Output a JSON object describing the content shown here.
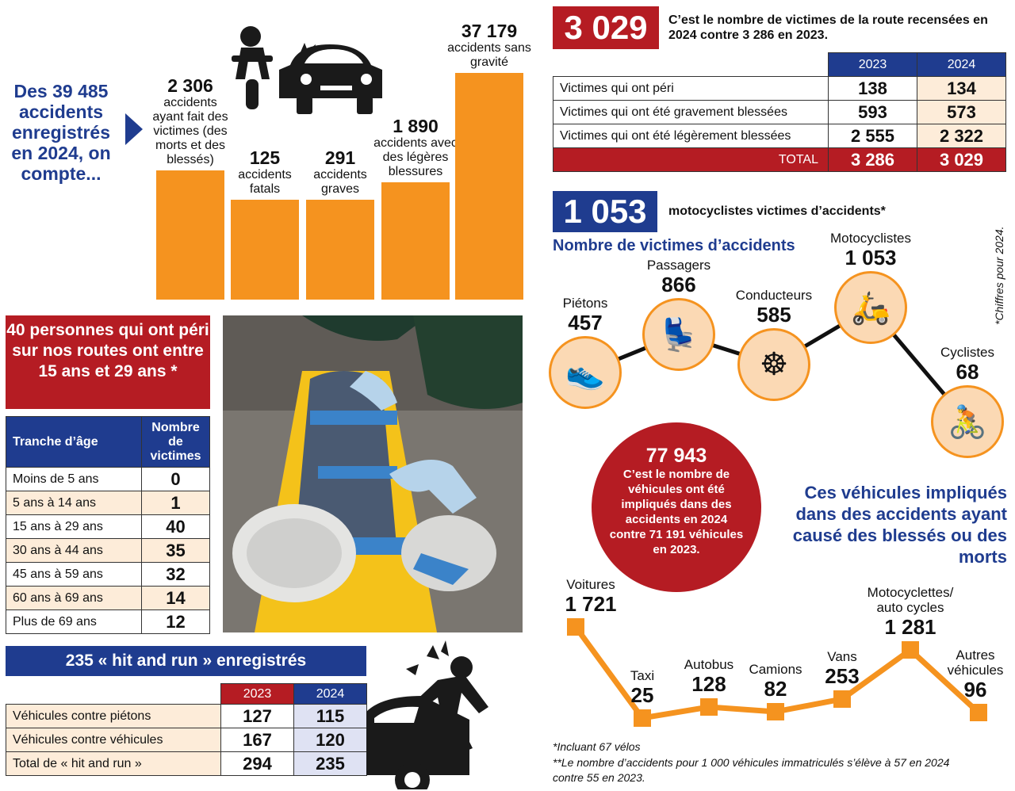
{
  "accidents": {
    "intro": "Des 39 485 accidents enregistrés en 2024, on compte...",
    "chart_data": {
      "type": "bar",
      "categories": [
        "accidents ayant fait des victimes (des morts et des blessés)",
        "accidents fatals",
        "accidents graves",
        "accidents avec des légères blessures",
        "accidents sans gravité"
      ],
      "values": [
        2306,
        125,
        291,
        1890,
        37179
      ]
    },
    "value_labels": [
      "2 306",
      "125",
      "291",
      "1 890",
      "37 179"
    ],
    "bar_texts": [
      "accidents ayant fait des victimes (des morts et des blessés)",
      "accidents fatals",
      "accidents graves",
      "accidents avec des légères blessures",
      "accidents sans gravité"
    ]
  },
  "victims": {
    "big_number": "3 029",
    "caption": "C’est le nombre de victimes de la route recensées en 2024 contre 3 286 en 2023.",
    "table": {
      "headers": [
        "2023",
        "2024"
      ],
      "rows": [
        {
          "label": "Victimes qui ont péri",
          "v2023": "138",
          "v2024": "134"
        },
        {
          "label": "Victimes qui ont été gravement blessées",
          "v2023": "593",
          "v2024": "573"
        },
        {
          "label": "Victimes qui ont été légèrement blessées",
          "v2023": "2 555",
          "v2024": "2 322"
        }
      ],
      "total_label": "TOTAL",
      "total_2023": "3 286",
      "total_2024": "3 029"
    }
  },
  "motorcyclists": {
    "big_number": "1 053",
    "caption": "motocyclistes victimes d’accidents*",
    "side_note": "*Chiffres pour 2024.",
    "chart_title": "Nombre de victimes d’accidents",
    "chart_data": {
      "type": "line",
      "categories": [
        "Piétons",
        "Passagers",
        "Conducteurs",
        "Motocyclistes",
        "Cyclistes"
      ],
      "values": [
        457,
        866,
        585,
        1053,
        68
      ]
    },
    "value_labels": [
      "457",
      "866",
      "585",
      "1 053",
      "68"
    ],
    "icons": [
      "shoe-icon",
      "car-seat-icon",
      "steering-wheel-icon",
      "scooter-icon",
      "bicycle-icon"
    ]
  },
  "youth": {
    "headline": "40 personnes qui ont péri sur nos routes ont entre 15 ans et 29 ans *",
    "table": {
      "header_age": "Tranche d’âge",
      "header_count": "Nombre de victimes",
      "rows": [
        {
          "age": "Moins de 5 ans",
          "count": "0"
        },
        {
          "age": "5 ans à 14 ans",
          "count": "1"
        },
        {
          "age": "15 ans à 29 ans",
          "count": "40"
        },
        {
          "age": "30 ans à 44 ans",
          "count": "35"
        },
        {
          "age": "45 ans à 59 ans",
          "count": "32"
        },
        {
          "age": "60 ans à 69 ans",
          "count": "14"
        },
        {
          "age": "Plus de 69 ans",
          "count": "12"
        }
      ]
    }
  },
  "vehicles": {
    "bubble_number": "77 943",
    "bubble_text": "C’est le nombre de véhicules ont été impliqués dans des accidents en 2024 contre 71 191 véhicules en 2023.",
    "headline": "Ces véhicules impliqués dans des accidents ayant causé des blessés ou des morts",
    "chart_data": {
      "type": "line",
      "categories": [
        "Voitures",
        "Taxi",
        "Autobus",
        "Camions",
        "Vans",
        "Motocyclettes/ auto cycles",
        "Autres véhicules"
      ],
      "values": [
        1721,
        25,
        128,
        82,
        253,
        1281,
        96
      ]
    },
    "value_labels": [
      "1 721",
      "25",
      "128",
      "82",
      "253",
      "1 281",
      "96"
    ],
    "footnote1": "*Incluant 67 vélos",
    "footnote2": "**Le nombre d’accidents pour 1 000 véhicules immatriculés s’élève à 57 en 2024 contre 55 en 2023."
  },
  "hitrun": {
    "headline": "235 « hit and run » enregistrés",
    "table": {
      "headers": [
        "2023",
        "2024"
      ],
      "rows": [
        {
          "label": "Véhicules contre piétons",
          "v2023": "127",
          "v2024": "115"
        },
        {
          "label": "Véhicules contre véhicules",
          "v2023": "167",
          "v2024": "120"
        },
        {
          "label": "Total de « hit and run »",
          "v2023": "294",
          "v2024": "235"
        }
      ]
    }
  },
  "colors": {
    "orange": "#f5931f",
    "red": "#b51c23",
    "navy": "#1f3c8f",
    "peach": "#fdecd9"
  }
}
